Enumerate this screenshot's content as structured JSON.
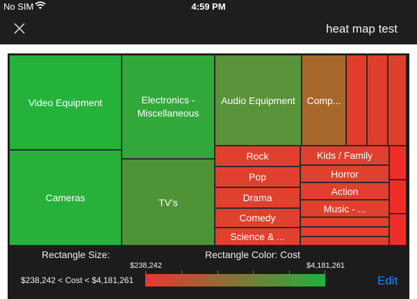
{
  "status_bar": {
    "carrier": "No SIM",
    "time": "4:59 PM"
  },
  "nav": {
    "title": "heat map test"
  },
  "chart_data": {
    "type": "heatmap",
    "size_label": "Rectangle Size:",
    "color_label": "Rectangle Color: Cost",
    "color_min_label": "$238,242",
    "color_max_label": "$4,181,261",
    "range_text": "$238,242 < Cost < $4,181,261",
    "color_min_hex": "#e8382e",
    "color_max_hex": "#21b23a",
    "tiles": [
      {
        "label": "Video Equipment",
        "color": "#25b23b"
      },
      {
        "label": "Cameras",
        "color": "#27b13b"
      },
      {
        "label": "Electronics - Miscellaneous",
        "color": "#32a83a"
      },
      {
        "label": "TV's",
        "color": "#4e9436"
      },
      {
        "label": "Audio Equipment",
        "color": "#59933a"
      },
      {
        "label": "Comp...",
        "color": "#a8682c"
      },
      {
        "label": "",
        "color": "#e23d2b"
      },
      {
        "label": "",
        "color": "#e03e2c"
      },
      {
        "label": "",
        "color": "#dd402c"
      },
      {
        "label": "Rock",
        "color": "#e0402e"
      },
      {
        "label": "Pop",
        "color": "#e0402e"
      },
      {
        "label": "Drama",
        "color": "#e0402e"
      },
      {
        "label": "Comedy",
        "color": "#e0402e"
      },
      {
        "label": "Science & ...",
        "color": "#e0402e"
      },
      {
        "label": "Kids / Family",
        "color": "#e0402e"
      },
      {
        "label": "Horror",
        "color": "#e0402e"
      },
      {
        "label": "Action",
        "color": "#e0402e"
      },
      {
        "label": "Music - ...",
        "color": "#e0402e"
      },
      {
        "label": "",
        "color": "#e03e2e"
      },
      {
        "label": "",
        "color": "#e03e2e"
      },
      {
        "label": "",
        "color": "#e03e2e"
      },
      {
        "label": "",
        "color": "#ef2e29"
      },
      {
        "label": "",
        "color": "#ef2e29"
      },
      {
        "label": "",
        "color": "#ef2e29"
      }
    ]
  },
  "toolbar": {
    "edit_label": "Edit"
  }
}
